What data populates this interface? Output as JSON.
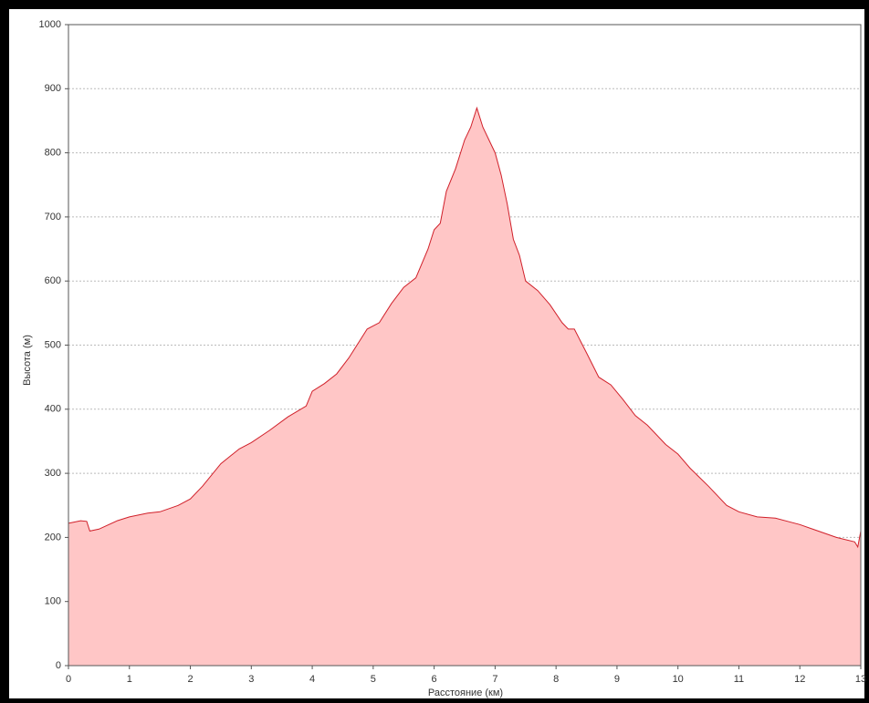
{
  "chart_data": {
    "type": "area",
    "xlabel": "Расстояние (км)",
    "ylabel": "Высота (м)",
    "x": [
      0,
      0.2,
      0.3,
      0.35,
      0.5,
      0.8,
      1.0,
      1.3,
      1.5,
      1.8,
      2.0,
      2.2,
      2.5,
      2.8,
      3.0,
      3.3,
      3.6,
      3.9,
      4.0,
      4.2,
      4.4,
      4.6,
      4.8,
      4.9,
      5.1,
      5.3,
      5.5,
      5.7,
      5.9,
      6.0,
      6.1,
      6.2,
      6.35,
      6.5,
      6.6,
      6.7,
      6.8,
      7.0,
      7.1,
      7.2,
      7.3,
      7.4,
      7.5,
      7.7,
      7.9,
      8.1,
      8.2,
      8.3,
      8.5,
      8.7,
      8.9,
      9.1,
      9.3,
      9.5,
      9.8,
      10.0,
      10.2,
      10.5,
      10.8,
      11.0,
      11.3,
      11.6,
      11.8,
      12.0,
      12.3,
      12.6,
      12.9,
      12.95,
      13.0
    ],
    "values": [
      222,
      226,
      225,
      210,
      213,
      226,
      232,
      238,
      240,
      250,
      260,
      280,
      315,
      338,
      348,
      367,
      388,
      405,
      428,
      440,
      455,
      480,
      510,
      525,
      535,
      565,
      590,
      605,
      650,
      680,
      690,
      740,
      775,
      820,
      840,
      870,
      840,
      800,
      765,
      720,
      665,
      640,
      600,
      585,
      563,
      535,
      525,
      525,
      488,
      450,
      438,
      415,
      390,
      375,
      345,
      330,
      308,
      280,
      250,
      240,
      232,
      230,
      225,
      220,
      210,
      200,
      193,
      185,
      210
    ],
    "color": "#d0202a",
    "fill": "#ffc6c6",
    "xlim": [
      0,
      13
    ],
    "xticks": [
      0,
      1,
      2,
      3,
      4,
      5,
      6,
      7,
      8,
      9,
      10,
      11,
      12,
      13
    ],
    "ylim": [
      0,
      1000
    ],
    "yticks": [
      0,
      100,
      200,
      300,
      400,
      500,
      600,
      700,
      800,
      900,
      1000
    ],
    "grid": true
  }
}
